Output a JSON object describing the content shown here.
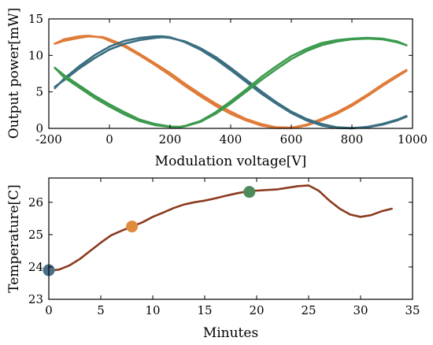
{
  "chart_data": [
    {
      "type": "line",
      "xlabel": "Modulation voltage[V]",
      "ylabel": "Output power[mW]",
      "xlim": [
        -200,
        1000
      ],
      "ylim": [
        0,
        15
      ],
      "xticks": [
        "-200",
        "0",
        "200",
        "400",
        "600",
        "800",
        "1000"
      ],
      "yticks": [
        "0",
        "5",
        "10",
        "15"
      ],
      "grid": false,
      "series": [
        {
          "color": "#e07b39",
          "x": [
            -180,
            -150,
            -100,
            -70,
            -20,
            0,
            50,
            100,
            150,
            200,
            250,
            300,
            350,
            400,
            450,
            500,
            550,
            600,
            650,
            700,
            750,
            800,
            850,
            900,
            950,
            980
          ],
          "y": [
            11.6,
            12.2,
            12.6,
            12.7,
            12.4,
            12.0,
            11.2,
            10.0,
            8.7,
            7.3,
            5.8,
            4.4,
            3.1,
            2.0,
            1.1,
            0.4,
            0.05,
            0.05,
            0.4,
            1.1,
            2.0,
            3.1,
            4.4,
            5.8,
            7.1,
            7.9
          ]
        },
        {
          "color": "#e07b39",
          "x": [
            -180,
            -150,
            -100,
            -70,
            -20,
            0,
            50,
            100,
            150,
            200,
            250,
            300,
            350,
            400,
            450,
            500,
            550,
            600,
            650,
            700,
            750,
            800,
            850,
            900,
            950,
            980
          ],
          "y": [
            11.6,
            12.0,
            12.4,
            12.6,
            12.5,
            12.2,
            11.4,
            10.2,
            8.9,
            7.6,
            6.1,
            4.7,
            3.4,
            2.3,
            1.3,
            0.6,
            0.15,
            0.1,
            0.5,
            1.3,
            2.2,
            3.3,
            4.6,
            6.0,
            7.3,
            8.0
          ]
        },
        {
          "color": "#3b6e80",
          "x": [
            -180,
            -150,
            -100,
            -50,
            0,
            50,
            100,
            150,
            175,
            200,
            250,
            300,
            350,
            400,
            450,
            500,
            550,
            600,
            650,
            700,
            750,
            800,
            850,
            900,
            950,
            980
          ],
          "y": [
            5.5,
            6.8,
            8.5,
            10.0,
            11.2,
            12.0,
            12.4,
            12.6,
            12.6,
            12.5,
            11.8,
            10.8,
            9.5,
            8.0,
            6.4,
            4.8,
            3.4,
            2.1,
            1.1,
            0.4,
            0.05,
            0.0,
            0.2,
            0.6,
            1.2,
            1.7
          ]
        },
        {
          "color": "#3b6e80",
          "x": [
            -180,
            -150,
            -100,
            -50,
            0,
            50,
            100,
            150,
            175,
            200,
            250,
            300,
            350,
            400,
            450,
            500,
            550,
            600,
            650,
            700,
            750,
            800,
            850,
            900,
            950,
            980
          ],
          "y": [
            5.7,
            6.6,
            8.2,
            9.6,
            10.8,
            11.6,
            12.1,
            12.4,
            12.5,
            12.4,
            11.9,
            11.0,
            9.8,
            8.3,
            6.7,
            5.1,
            3.6,
            2.3,
            1.3,
            0.6,
            0.15,
            0.05,
            0.15,
            0.5,
            1.1,
            1.6
          ]
        },
        {
          "color": "#3c9a4e",
          "x": [
            -180,
            -150,
            -100,
            -50,
            0,
            50,
            100,
            150,
            200,
            230,
            250,
            300,
            350,
            400,
            450,
            500,
            550,
            600,
            650,
            700,
            750,
            800,
            850,
            900,
            950,
            980
          ],
          "y": [
            8.3,
            7.0,
            5.6,
            4.2,
            3.0,
            1.9,
            1.0,
            0.45,
            0.2,
            0.15,
            0.3,
            0.9,
            2.0,
            3.4,
            5.0,
            6.6,
            8.1,
            9.5,
            10.6,
            11.4,
            11.9,
            12.2,
            12.3,
            12.2,
            11.8,
            11.4
          ]
        },
        {
          "color": "#3c9a4e",
          "x": [
            -180,
            -150,
            -100,
            -50,
            0,
            50,
            100,
            150,
            200,
            230,
            250,
            300,
            350,
            400,
            450,
            500,
            550,
            600,
            650,
            700,
            750,
            800,
            850,
            900,
            950,
            980
          ],
          "y": [
            8.3,
            7.3,
            5.9,
            4.5,
            3.3,
            2.2,
            1.2,
            0.6,
            0.25,
            0.2,
            0.35,
            1.0,
            2.2,
            3.7,
            5.3,
            7.0,
            8.5,
            9.9,
            10.9,
            11.7,
            12.1,
            12.3,
            12.4,
            12.3,
            11.9,
            11.4
          ]
        }
      ]
    },
    {
      "type": "line",
      "xlabel": "Minutes",
      "ylabel": "Temperature[C]",
      "xlim": [
        0,
        35
      ],
      "ylim": [
        23,
        26.75
      ],
      "xticks": [
        "0",
        "5",
        "10",
        "15",
        "20",
        "25",
        "30",
        "35"
      ],
      "yticks": [
        "23",
        "24",
        "25",
        "26"
      ],
      "grid": false,
      "series": [
        {
          "color": "#8b3a1e",
          "x": [
            0,
            1,
            2,
            3,
            4,
            5,
            6,
            7,
            8,
            9,
            10,
            11,
            12,
            13,
            14,
            15,
            16,
            17,
            18,
            19,
            20,
            21,
            22,
            23,
            24,
            25,
            26,
            27,
            28,
            29,
            30,
            31,
            32,
            33
          ],
          "y": [
            23.88,
            23.92,
            24.05,
            24.25,
            24.5,
            24.75,
            24.98,
            25.12,
            25.25,
            25.38,
            25.55,
            25.68,
            25.82,
            25.93,
            26.0,
            26.05,
            26.12,
            26.2,
            26.27,
            26.33,
            26.36,
            26.38,
            26.4,
            26.45,
            26.5,
            26.52,
            26.35,
            26.05,
            25.8,
            25.62,
            25.55,
            25.6,
            25.72,
            25.8
          ]
        }
      ],
      "markers": [
        {
          "x": 0,
          "y": 23.9,
          "color": "#4a6f88"
        },
        {
          "x": 8,
          "y": 25.25,
          "color": "#e08a3c"
        },
        {
          "x": 19.3,
          "y": 26.32,
          "color": "#4f8a5a"
        }
      ]
    }
  ]
}
